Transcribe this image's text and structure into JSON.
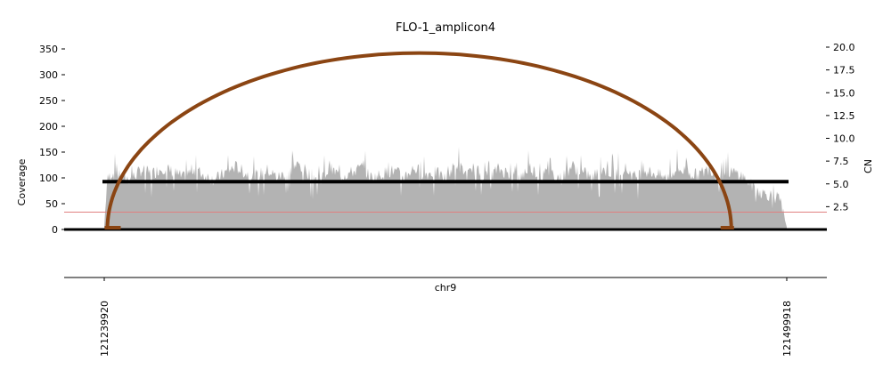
{
  "chart_data": {
    "type": "area",
    "title": "FLO-1_amplicon4",
    "xlabel": "chr9",
    "ylabel_left": "Coverage",
    "ylabel_right": "CN",
    "xlim": [
      121239920,
      121499918
    ],
    "ylim_left": [
      0,
      350
    ],
    "ylim_right": [
      0,
      20
    ],
    "x_ticks": [
      121239920,
      121499918
    ],
    "x_tick_labels": [
      "121239920",
      "121499918"
    ],
    "y_ticks_left": [
      0,
      50,
      100,
      150,
      200,
      250,
      300,
      350
    ],
    "y_tick_labels_left": [
      "0",
      "50",
      "100",
      "150",
      "200",
      "250",
      "300",
      "350"
    ],
    "y_ticks_right": [
      2.5,
      5.0,
      7.5,
      10.0,
      12.5,
      15.0,
      17.5,
      20.0
    ],
    "y_tick_labels_right": [
      "2.5",
      "5.0",
      "7.5",
      "10.0",
      "12.5",
      "15.0",
      "17.5",
      "20.0"
    ],
    "grid": false,
    "colors": {
      "coverage": "#b3b3b3",
      "segment": "#000000",
      "threshold": "#e08080",
      "arc": "#8b4513"
    },
    "series": [
      {
        "kind": "coverage_profile",
        "x": [
          121239920,
          121241000,
          121243000,
          121246000,
          121250000,
          121254000,
          121258000,
          121262000,
          121266000,
          121270000,
          121274000,
          121278000,
          121282000,
          121286000,
          121290000,
          121294000,
          121298000,
          121302000,
          121306000,
          121310000,
          121314000,
          121318000,
          121322000,
          121326000,
          121330000,
          121334000,
          121338000,
          121342000,
          121346000,
          121350000,
          121354000,
          121358000,
          121362000,
          121366000,
          121370000,
          121374000,
          121378000,
          121382000,
          121386000,
          121390000,
          121394000,
          121398000,
          121402000,
          121406000,
          121410000,
          121414000,
          121418000,
          121422000,
          121426000,
          121430000,
          121434000,
          121438000,
          121442000,
          121446000,
          121450000,
          121454000,
          121458000,
          121462000,
          121466000,
          121470000,
          121474000,
          121478000,
          121482000,
          121486000,
          121490000,
          121494000,
          121497000,
          121499918
        ],
        "values": [
          5,
          95,
          110,
          102,
          98,
          115,
          108,
          120,
          112,
          100,
          118,
          105,
          96,
          110,
          122,
          108,
          104,
          115,
          101,
          112,
          126,
          108,
          98,
          117,
          104,
          110,
          120,
          99,
          108,
          114,
          102,
          119,
          107,
          111,
          98,
          128,
          106,
          113,
          101,
          117,
          109,
          100,
          121,
          104,
          112,
          98,
          124,
          110,
          103,
          116,
          107,
          120,
          102,
          114,
          108,
          99,
          118,
          111,
          105,
          117,
          103,
          112,
          108,
          88,
          72,
          66,
          60,
          5
        ]
      },
      {
        "kind": "copy_number_segment",
        "x": [
          121239920,
          121499918
        ],
        "cn": [
          5.25,
          5.25
        ]
      },
      {
        "kind": "threshold",
        "cn": 1.9
      },
      {
        "kind": "breakpoint_arc",
        "x": [
          121241100,
          121478800
        ],
        "peak_coverage": 342
      }
    ]
  }
}
